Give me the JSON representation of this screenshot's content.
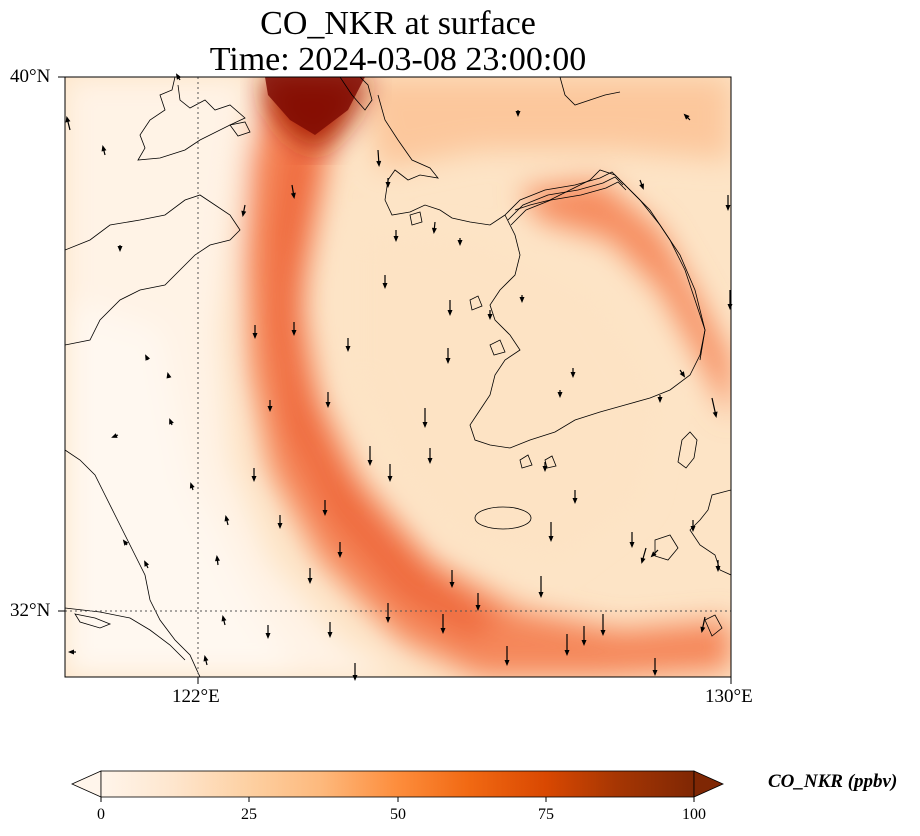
{
  "title": {
    "line1": "CO_NKR at surface",
    "line2": "Time: 2024-03-08 23:00:00"
  },
  "axes": {
    "lat_labels": [
      "40°N",
      "32°N"
    ],
    "lon_labels": [
      "122°E",
      "130°E"
    ]
  },
  "colorbar": {
    "label": "CO_NKR (ppbv)",
    "ticks": [
      "0",
      "25",
      "50",
      "75",
      "100"
    ],
    "range": [
      0,
      100
    ],
    "extend": "both",
    "colormap": [
      "#fff5eb",
      "#fee6ce",
      "#fdd0a2",
      "#fdae6b",
      "#fd8d3c",
      "#f16913",
      "#d94801",
      "#a63603",
      "#7f2704"
    ]
  },
  "map": {
    "lon_range": [
      120,
      130
    ],
    "lat_range": [
      31,
      40
    ],
    "gridlines": "dotted",
    "wind_vectors": "black arrows, mostly southward"
  },
  "colors": {
    "coastline": "#000000",
    "gridline": "#555555",
    "background": "#ffffff"
  }
}
